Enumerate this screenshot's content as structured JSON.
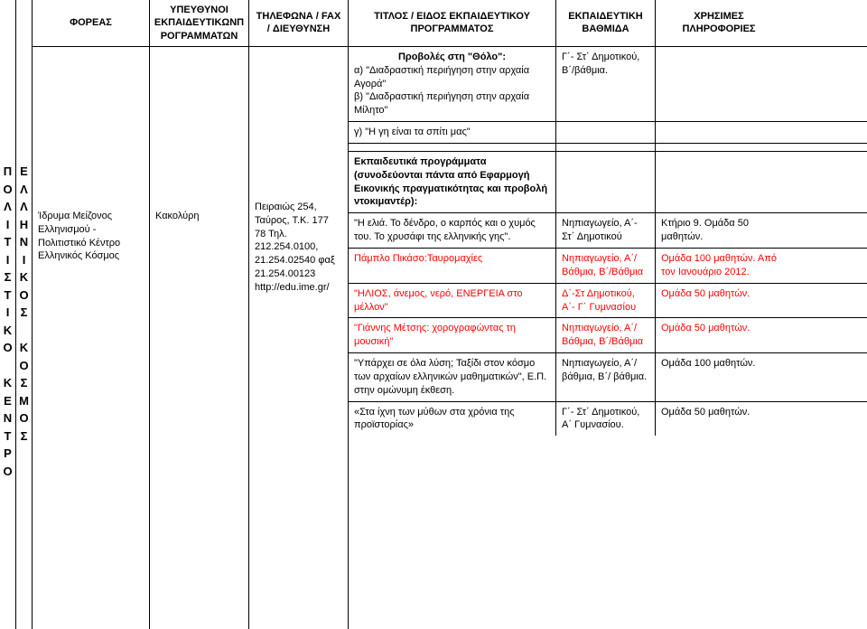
{
  "vertical": {
    "col1": [
      "Π",
      "Ο",
      "Λ",
      "Ι",
      "Τ",
      "Ι",
      "Σ",
      "Τ",
      "Ι",
      "Κ",
      "Ο",
      "",
      "Κ",
      "Ε",
      "Ν",
      "Τ",
      "Ρ",
      "Ο"
    ],
    "col2": [
      "Ε",
      "Λ",
      "Λ",
      "Η",
      "Ν",
      "Ι",
      "Κ",
      "Ο",
      "Σ",
      "",
      "Κ",
      "Ο",
      "Σ",
      "Μ",
      "Ο",
      "Σ"
    ]
  },
  "headers": {
    "foreas": "ΦΟΡΕΑΣ",
    "ypef": "ΥΠΕΥΘΥΝΟΙ ΕΚΠΑΙΔΕΥΤΙΚΩΝΠ ΡΟΓΡΑΜΜΑΤΩΝ",
    "tel": "ΤΗΛΕΦΩΝΑ / FAX / ΔΙΕΥΘΥΝΣΗ",
    "titlos": "ΤΙΤΛΟΣ / ΕΙΔΟΣ ΕΚΠΑΙΔΕΥΤΙΚΟΥ ΠΡΟΓΡΑΜΜΑΤΟΣ",
    "vath": "ΕΚΠΑΙΔΕΥΤΙΚΗ ΒΑΘΜΙΔΑ",
    "info": "ΧΡΗΣΙΜΕΣ ΠΛΗΡΟΦΟΡΙΕΣ"
  },
  "col_foreas": "Ίδρυμα Μείζονος Ελληνισμού - Πολιτιστικό Κέντρο Ελληνικός Κόσμος",
  "col_ypef": "Κακολύρη",
  "col_tel": "Πειραιώς 254, Ταύρος, Τ.Κ. 177 78 Τηλ. 212.254.0100, 21.254.02540 φαξ 21.254.00123 http://edu.ime.gr/",
  "rows": [
    {
      "titlos_bold_center": "Προβολές στη \"Θόλο\":",
      "titlos_lines": [
        "α) \"Διαδραστική περιήγηση στην αρχαία Αγορά\"",
        "β) \"Διαδραστική περιήγηση στην αρχαία Μίλητο\""
      ],
      "vath": "Γ΄- Στ΄ Δημοτικού, Β΄/βάθμια.",
      "info": ""
    },
    {
      "titlos": "γ) \"Η γη είναι τα σπίτι μας\"",
      "vath": "",
      "info": ""
    },
    {
      "titlos": "",
      "vath": "",
      "info": ""
    },
    {
      "titlos_bold": "Εκπαιδευτικά προγράμματα (συνοδεύονται πάντα από Εφαρμογή Εικονικής πραγματικότητας και προβολή ντοκιμαντέρ):",
      "vath": "",
      "info": ""
    },
    {
      "titlos": "\"Η ελιά. Το δένδρο, ο καρπός και ο χυμός του. Το χρυσάφι της ελληνικής γης\".",
      "vath": "Νηπιαγωγείο, Α΄- Στ΄ Δημοτικού",
      "info": "Κτήριο 9. Ομάδα 50 μαθητών."
    },
    {
      "titlos_red": "Πάμπλο Πικάσο:Ταυρομαχίες",
      "vath_red": "Νηπιαγωγείο, Α΄/Βάθμια, Β΄/Βάθμια",
      "info_red": "Ομάδα 100 μαθητών. Από τον Ιανουάριο 2012."
    },
    {
      "titlos_red": "\"ΗΛΙΟΣ, άνεμος, νερό, ΕΝΕΡΓΕΙΑ στο μέλλον\"",
      "vath_red": "Δ΄-Στ Δημοτικού, Α΄- Γ΄ Γυμνασίου",
      "info_red": "Ομάδα 50 μαθητών."
    },
    {
      "titlos_red": "\"Γιάννης Μέτσης: χορογραφώντας τη μουσική\"",
      "vath_red": "Νηπιαγωγείο, Α΄/Βάθμια, Β΄/Βάθμια",
      "info_red": "Ομάδα 50 μαθητών."
    },
    {
      "titlos": "\"Υπάρχει σε όλα λύση; Ταξίδι στον κόσμο των αρχαίων ελληνικών μαθηματικών\", Ε.Π. στην ομώνυμη έκθεση.",
      "vath": "Νηπιαγωγείο, Α΄/ βάθμια, Β΄/ βάθμια.",
      "info": "Ομάδα 100 μαθητών."
    },
    {
      "titlos": "«Στα ίχνη των μύθων στα χρόνια της προϊστορίας»",
      "vath": "Γ΄- Στ΄ Δημοτικού, Α΄ Γυμνασίου.",
      "info": "Ομάδα 50 μαθητών.",
      "last": true
    }
  ]
}
